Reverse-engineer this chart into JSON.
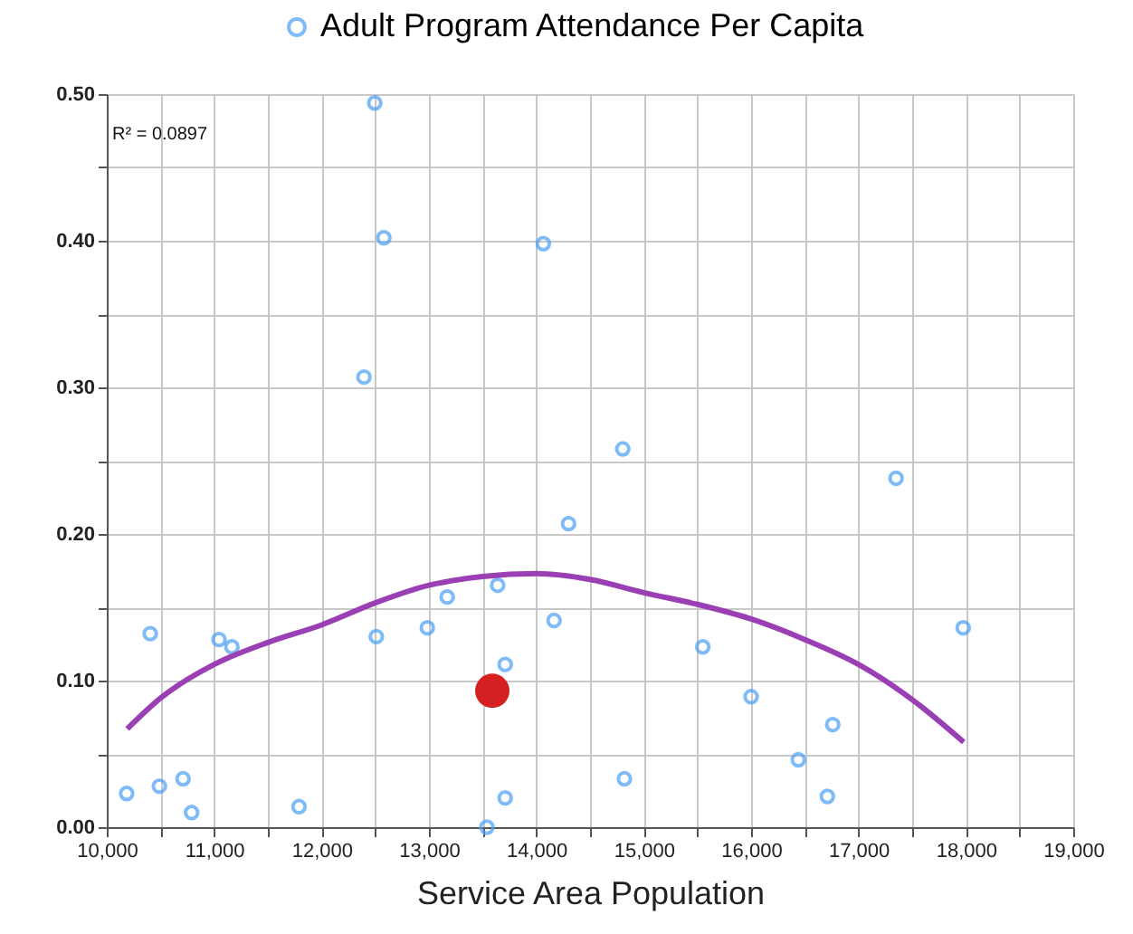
{
  "chart_data": {
    "type": "scatter",
    "xlabel": "Service Area Population",
    "annotations": [
      "R² = 0.0897"
    ],
    "legend": "top",
    "grid": true,
    "xlim": [
      10000,
      19000
    ],
    "xticks": [
      {
        "value": 10000,
        "label": "10,000"
      },
      {
        "value": 10500,
        "label": null
      },
      {
        "value": 11000,
        "label": "11,000"
      },
      {
        "value": 11500,
        "label": null
      },
      {
        "value": 12000,
        "label": "12,000"
      },
      {
        "value": 12500,
        "label": null
      },
      {
        "value": 13000,
        "label": "13,000"
      },
      {
        "value": 13500,
        "label": null
      },
      {
        "value": 14000,
        "label": "14,000"
      },
      {
        "value": 14500,
        "label": null
      },
      {
        "value": 15000,
        "label": "15,000"
      },
      {
        "value": 15500,
        "label": null
      },
      {
        "value": 16000,
        "label": "16,000"
      },
      {
        "value": 16500,
        "label": null
      },
      {
        "value": 17000,
        "label": "17,000"
      },
      {
        "value": 17500,
        "label": null
      },
      {
        "value": 18000,
        "label": "18,000"
      },
      {
        "value": 18500,
        "label": null
      },
      {
        "value": 19000,
        "label": "19,000"
      }
    ],
    "ylim": [
      0,
      0.5
    ],
    "yticks": [
      {
        "value": 0,
        "label": "0.00"
      },
      {
        "value": 0.05,
        "label": null
      },
      {
        "value": 0.1,
        "label": "0.10"
      },
      {
        "value": 0.15,
        "label": null
      },
      {
        "value": 0.2,
        "label": "0.20"
      },
      {
        "value": 0.25,
        "label": null
      },
      {
        "value": 0.3,
        "label": "0.30"
      },
      {
        "value": 0.35,
        "label": null
      },
      {
        "value": 0.4,
        "label": "0.40"
      },
      {
        "value": 0.45,
        "label": null
      },
      {
        "value": 0.5,
        "label": "0.50"
      }
    ],
    "series": [
      {
        "name": "Adult Program Attendance Per Capita",
        "type": "scatter",
        "marker": "circle",
        "color": "#4a9ff5",
        "x": [
          10185,
          10405,
          10490,
          10710,
          10790,
          11045,
          11165,
          11790,
          12495,
          12580,
          12395,
          12510,
          12985,
          13170,
          13640,
          13710,
          13540,
          13710,
          14065,
          14165,
          14300,
          14805,
          14820,
          15550,
          16000,
          16440,
          16710,
          16760,
          17350,
          17975
        ],
        "values": [
          0.023,
          0.132,
          0.028,
          0.033,
          0.01,
          0.128,
          0.123,
          0.014,
          0.494,
          0.402,
          0.307,
          0.13,
          0.136,
          0.157,
          0.165,
          0.111,
          0.0,
          0.02,
          0.398,
          0.141,
          0.207,
          0.258,
          0.033,
          0.123,
          0.089,
          0.046,
          0.021,
          0.07,
          0.238,
          0.136
        ]
      },
      {
        "type": "line",
        "color": "#9b3fb5",
        "x": [
          10190,
          10500,
          11000,
          11500,
          12000,
          12500,
          13000,
          13500,
          14000,
          14500,
          15000,
          15500,
          16000,
          16500,
          17000,
          17500,
          17980
        ],
        "values": [
          0.067,
          0.088,
          0.111,
          0.126,
          0.138,
          0.153,
          0.165,
          0.171,
          0.173,
          0.169,
          0.16,
          0.152,
          0.142,
          0.128,
          0.111,
          0.087,
          0.058
        ]
      },
      {
        "type": "scatter",
        "color": "#d42020",
        "marker": "circle",
        "x": [
          13590
        ],
        "values": [
          0.093
        ]
      }
    ]
  }
}
